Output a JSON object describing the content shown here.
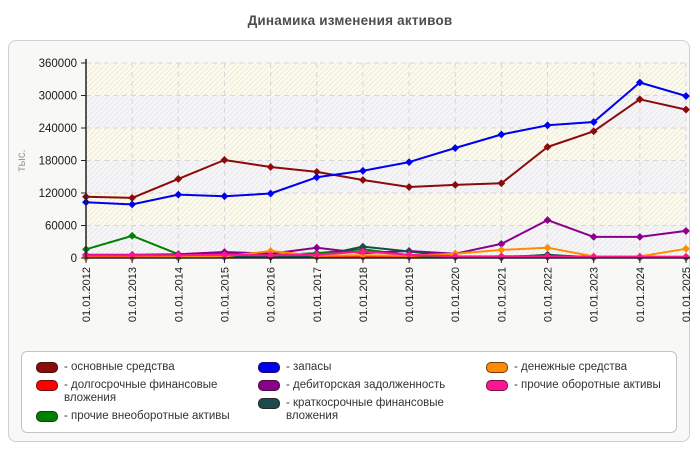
{
  "title": "Динамика изменения активов",
  "legend": {
    "prefix": "-"
  },
  "chart_data": {
    "type": "line",
    "title": "Динамика изменения активов",
    "xlabel": "",
    "ylabel": "тыс.",
    "ylim": [
      0,
      360000
    ],
    "ytick_step": 60000,
    "yticks": [
      "0",
      "60000",
      "120000",
      "180000",
      "240000",
      "300000",
      "360000"
    ],
    "grid": true,
    "legend_position": "bottom",
    "x": [
      "01.01.2012",
      "01.01.2013",
      "01.01.2014",
      "01.01.2015",
      "01.01.2016",
      "01.01.2017",
      "01.01.2018",
      "01.01.2019",
      "01.01.2020",
      "01.01.2021",
      "01.01.2022",
      "01.01.2023",
      "01.01.2024",
      "01.01.2025"
    ],
    "series": [
      {
        "name": "основные средства",
        "color": "#8b0a0a",
        "values": [
          113000,
          111000,
          146000,
          181000,
          168000,
          159000,
          144000,
          131000,
          135000,
          138000,
          205000,
          234000,
          293000,
          274000
        ]
      },
      {
        "name": "долгосрочные финансовые вложения",
        "color": "#ff0000",
        "values": [
          2000,
          2000,
          2000,
          2000,
          2000,
          2000,
          2000,
          2000,
          2000,
          2000,
          2000,
          2000,
          2000,
          2000
        ]
      },
      {
        "name": "прочие внеоборотные активы",
        "color": "#008000",
        "values": [
          16000,
          41000,
          7000,
          9000,
          5000,
          9000,
          16000,
          5000,
          2000,
          3000,
          4000,
          2000,
          2000,
          2000
        ]
      },
      {
        "name": "запасы",
        "color": "#0000f0",
        "values": [
          103000,
          99000,
          117000,
          114000,
          119000,
          149000,
          161000,
          177000,
          203000,
          228000,
          245000,
          251000,
          324000,
          299000
        ]
      },
      {
        "name": "дебиторская задолженность",
        "color": "#8b008b",
        "values": [
          6000,
          6000,
          7000,
          11000,
          8000,
          19000,
          9000,
          13000,
          8000,
          26000,
          70000,
          39000,
          39000,
          50000
        ]
      },
      {
        "name": "краткосрочные финансовые вложения",
        "color": "#1c4a4a",
        "values": [
          1000,
          1000,
          1000,
          2000,
          2000,
          3000,
          21000,
          12000,
          2000,
          1000,
          6000,
          1000,
          1000,
          1000
        ]
      },
      {
        "name": "денежные средства",
        "color": "#ff8c00",
        "values": [
          1000,
          1000,
          2000,
          3000,
          13000,
          4000,
          5000,
          4000,
          8000,
          15000,
          19000,
          3000,
          3000,
          17000
        ]
      },
      {
        "name": "прочие оборотные активы",
        "color": "#ff1493",
        "values": [
          5000,
          5000,
          5000,
          6000,
          5000,
          6000,
          12000,
          6000,
          3000,
          3000,
          3000,
          2000,
          2000,
          2000
        ]
      }
    ],
    "legend_columns": [
      [
        0,
        1,
        2
      ],
      [
        3,
        4,
        5
      ],
      [
        6,
        7
      ]
    ]
  }
}
